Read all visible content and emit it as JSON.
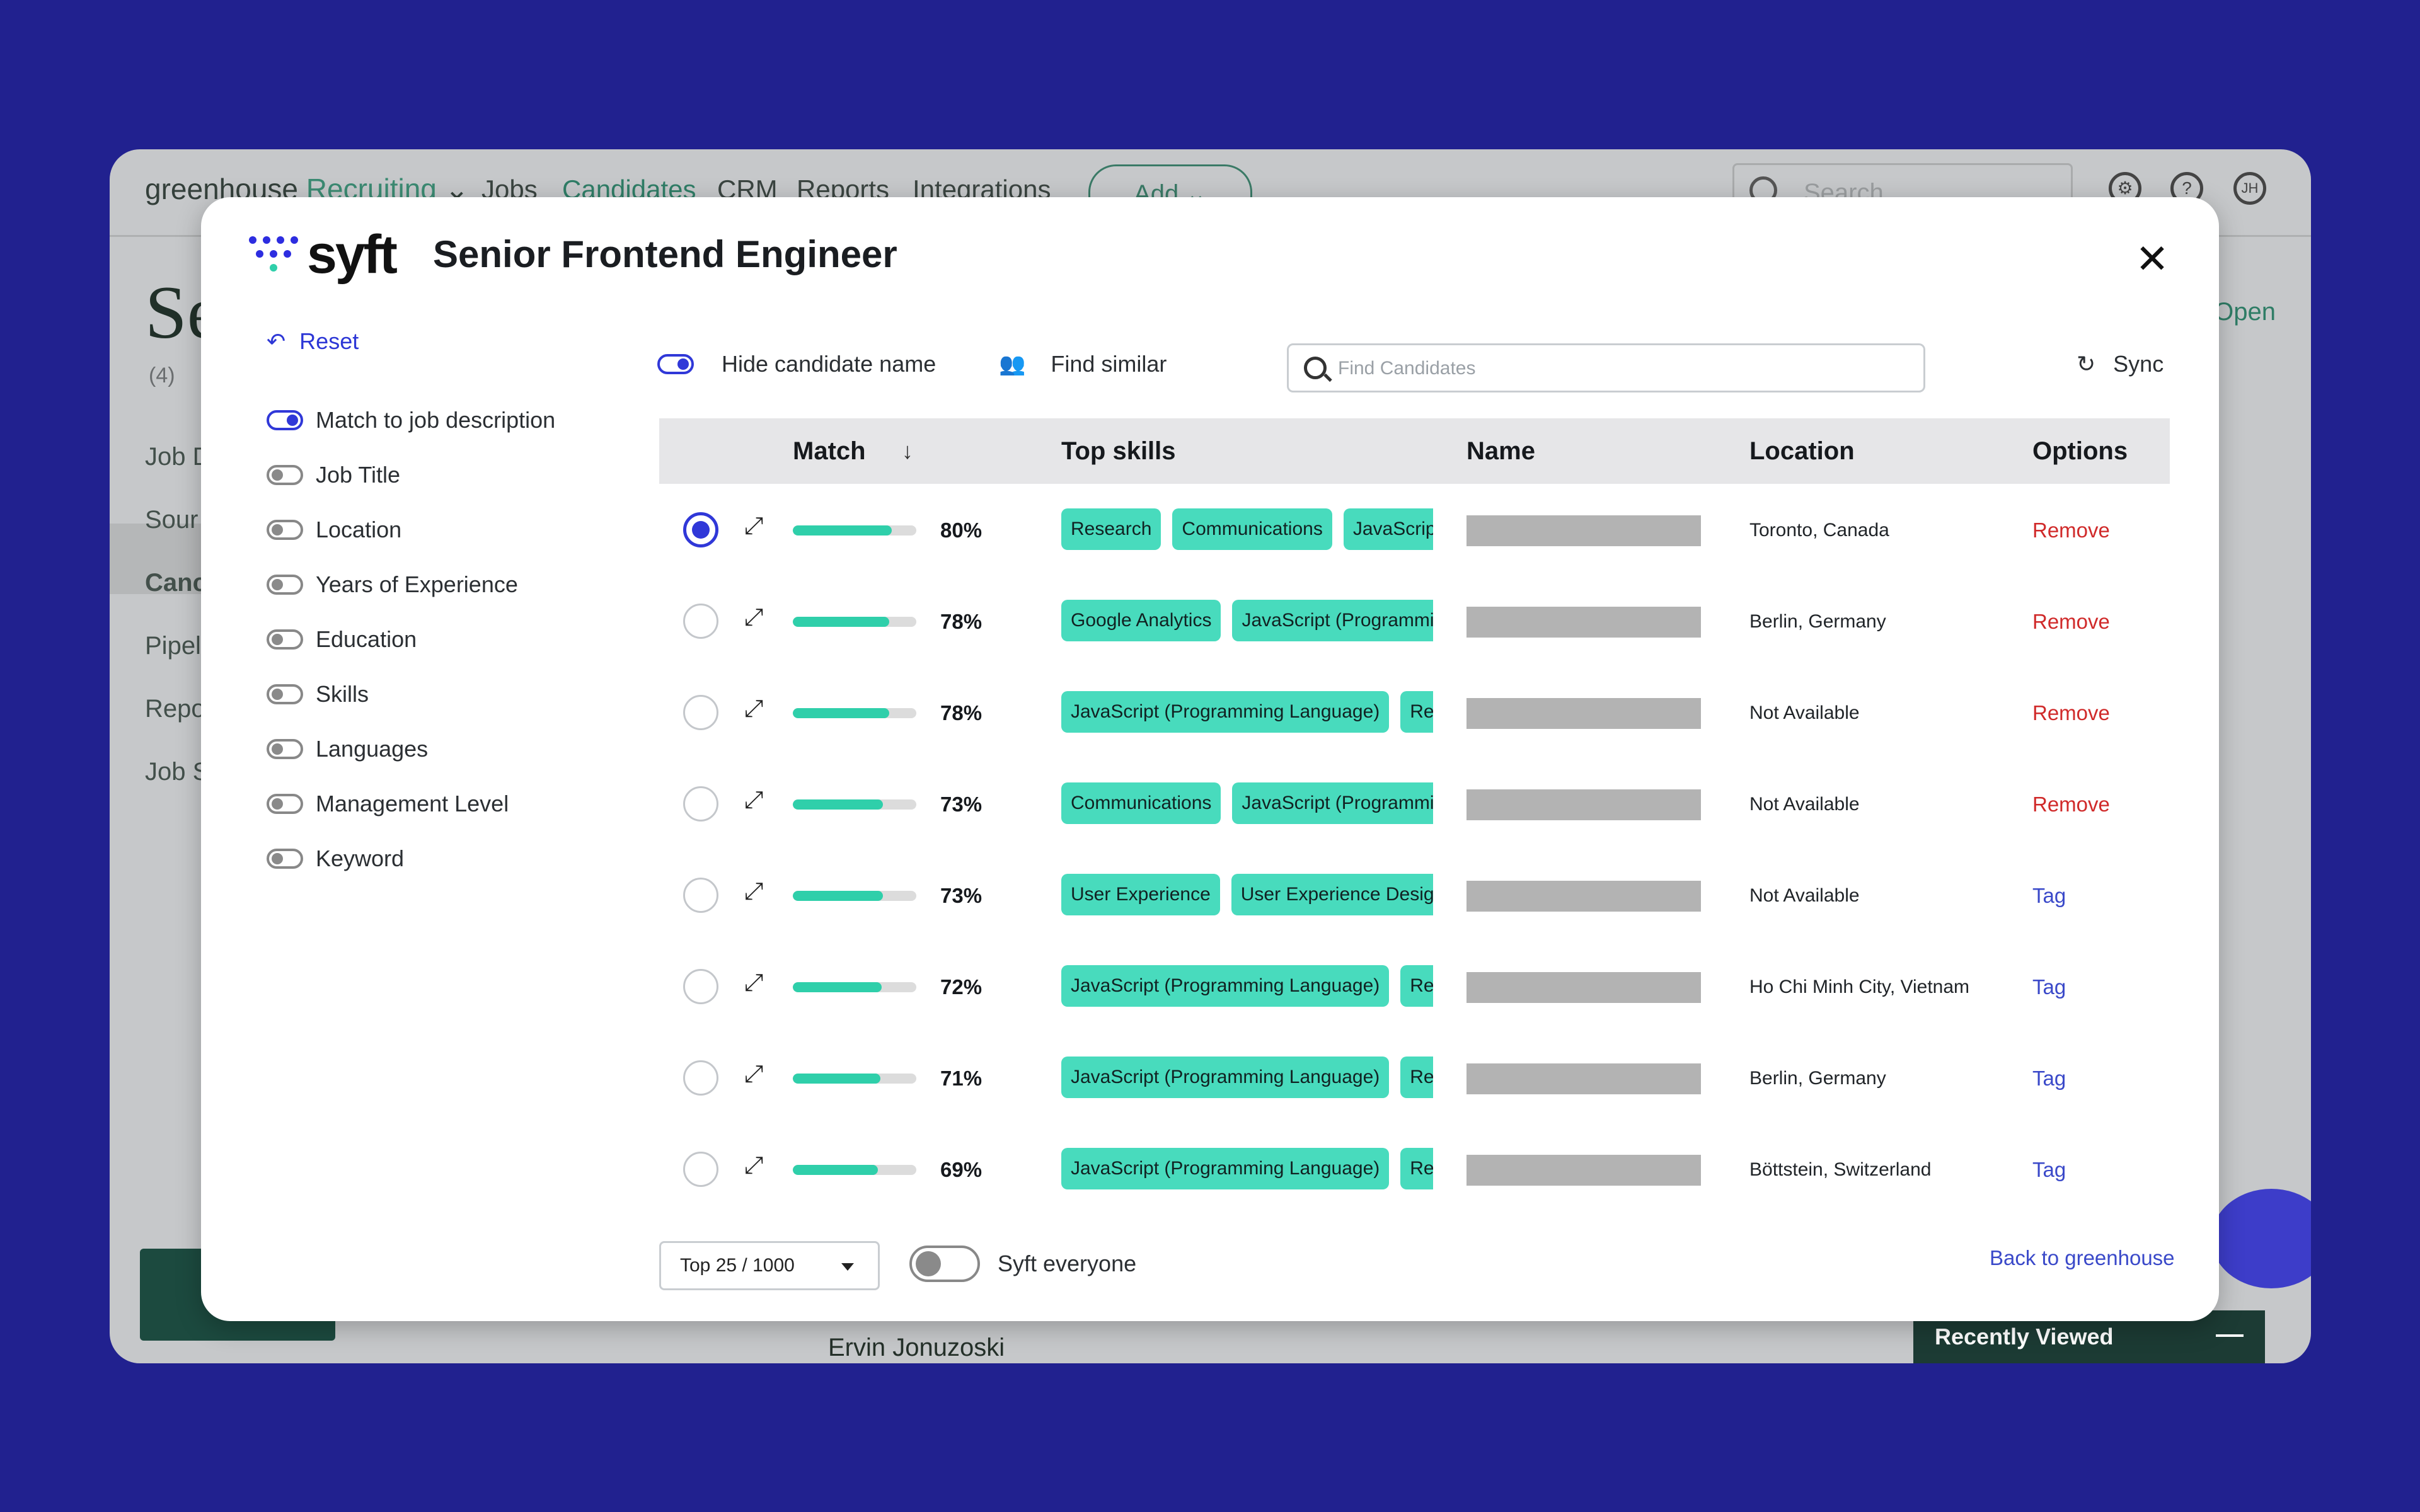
{
  "background_app": {
    "logo_main": "greenhouse",
    "logo_sub": "Recruiting",
    "nav": [
      "Jobs",
      "Candidates",
      "CRM",
      "Reports",
      "Integrations"
    ],
    "add_label": "Add",
    "search_placeholder": "Search",
    "user_initials": "JH",
    "page_title_partial": "Se",
    "count": "(4)",
    "side_items": [
      "Job D",
      "Sour",
      "Canc",
      "Pipel",
      "Repo",
      "Job S"
    ],
    "open_label": "Open",
    "person_name": "Ervin Jonuzoski",
    "recently_viewed": "Recently Viewed"
  },
  "modal": {
    "brand": "syft",
    "title": "Senior Frontend Engineer",
    "reset_label": "Reset",
    "filters": [
      {
        "label": "Match to job description",
        "on": true
      },
      {
        "label": "Job Title",
        "on": false
      },
      {
        "label": "Location",
        "on": false
      },
      {
        "label": "Years of Experience",
        "on": false
      },
      {
        "label": "Education",
        "on": false
      },
      {
        "label": "Skills",
        "on": false
      },
      {
        "label": "Languages",
        "on": false
      },
      {
        "label": "Management Level",
        "on": false
      },
      {
        "label": "Keyword",
        "on": false
      }
    ],
    "hide_name_label": "Hide candidate name",
    "find_similar_label": "Find similar",
    "search_placeholder": "Find Candidates",
    "sync_label": "Sync",
    "columns": {
      "match": "Match",
      "skills": "Top skills",
      "name": "Name",
      "location": "Location",
      "options": "Options"
    },
    "rows": [
      {
        "selected": true,
        "match": 80,
        "match_label": "80%",
        "skills": [
          "Research",
          "Communications",
          "JavaScript (Programming Language)"
        ],
        "location": "Toronto, Canada",
        "option": "Remove"
      },
      {
        "selected": false,
        "match": 78,
        "match_label": "78%",
        "skills": [
          "Google Analytics",
          "JavaScript (Programming Language)"
        ],
        "location": "Berlin, Germany",
        "option": "Remove"
      },
      {
        "selected": false,
        "match": 78,
        "match_label": "78%",
        "skills": [
          "JavaScript (Programming Language)",
          "React"
        ],
        "location": "Not Available",
        "option": "Remove"
      },
      {
        "selected": false,
        "match": 73,
        "match_label": "73%",
        "skills": [
          "Communications",
          "JavaScript (Programming Language)"
        ],
        "location": "Not Available",
        "option": "Remove"
      },
      {
        "selected": false,
        "match": 73,
        "match_label": "73%",
        "skills": [
          "User Experience",
          "User Experience Design"
        ],
        "location": "Not Available",
        "option": "Tag"
      },
      {
        "selected": false,
        "match": 72,
        "match_label": "72%",
        "skills": [
          "JavaScript (Programming Language)",
          "React"
        ],
        "location": "Ho Chi Minh City, Vietnam",
        "option": "Tag"
      },
      {
        "selected": false,
        "match": 71,
        "match_label": "71%",
        "skills": [
          "JavaScript (Programming Language)",
          "React"
        ],
        "location": "Berlin, Germany",
        "option": "Tag"
      },
      {
        "selected": false,
        "match": 69,
        "match_label": "69%",
        "skills": [
          "JavaScript (Programming Language)",
          "React"
        ],
        "location": "Böttstein, Switzerland",
        "option": "Tag"
      }
    ],
    "top_select": "Top 25 / 1000",
    "syft_everyone_label": "Syft everyone",
    "back_link": "Back to greenhouse"
  },
  "colors": {
    "backdrop": "#21218f",
    "accent": "#3038d8",
    "skill_chip": "#48dbbd",
    "match_bar": "#2fcfaa",
    "remove": "#d02a2a",
    "tag": "#3a49c9"
  }
}
